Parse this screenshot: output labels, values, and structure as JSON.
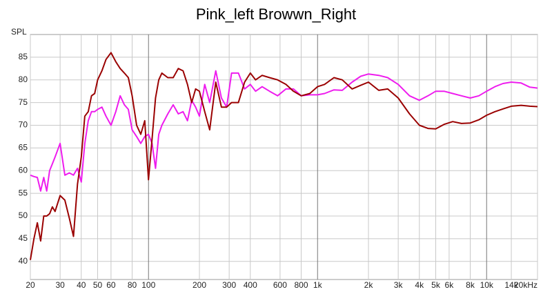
{
  "chart_data": {
    "type": "line",
    "title": "Pink_left Browwn_Right",
    "y_label": "SPL",
    "log_x": true,
    "grid": true,
    "x": [
      20,
      21,
      22,
      23,
      24,
      25,
      26,
      27,
      28,
      30,
      32,
      34,
      36,
      38,
      40,
      42,
      44,
      46,
      48,
      50,
      53,
      56,
      60,
      64,
      68,
      72,
      76,
      80,
      85,
      90,
      95,
      100,
      105,
      110,
      115,
      120,
      130,
      140,
      150,
      160,
      170,
      180,
      190,
      200,
      215,
      230,
      250,
      270,
      290,
      310,
      340,
      370,
      400,
      430,
      470,
      520,
      580,
      650,
      720,
      800,
      900,
      1000,
      1100,
      1250,
      1400,
      1600,
      1800,
      2000,
      2300,
      2600,
      3000,
      3500,
      4000,
      4500,
      5000,
      5600,
      6300,
      7100,
      8000,
      9000,
      10000,
      11200,
      12500,
      14000,
      16000,
      18000,
      20000
    ],
    "series": [
      {
        "name": "Pink",
        "color": "#ee1cee",
        "values": [
          59,
          58.7,
          58.5,
          55.5,
          58.5,
          55.5,
          60,
          61.5,
          63,
          66,
          59,
          59.5,
          59,
          60.5,
          57.5,
          66,
          71,
          73,
          73,
          73.5,
          74,
          72,
          70,
          73,
          76.5,
          74.5,
          73.5,
          69,
          67.5,
          66,
          67.5,
          68,
          66,
          60.5,
          68,
          70,
          72.5,
          74.5,
          72.5,
          73,
          71,
          75.5,
          74,
          72,
          79,
          75,
          82,
          76,
          74,
          81.5,
          81.5,
          78,
          79,
          77.5,
          78.5,
          77.5,
          76.5,
          78,
          78,
          76.5,
          76.7,
          76.7,
          77,
          77.8,
          77.7,
          79.5,
          80.8,
          81.3,
          81,
          80.5,
          79,
          76.5,
          75.5,
          76.5,
          77.5,
          77.5,
          77,
          76.5,
          76,
          76.5,
          77.5,
          78.5,
          79.2,
          79.5,
          79.3,
          78.4,
          78.2
        ]
      },
      {
        "name": "Brown",
        "color": "#9a0000",
        "values": [
          40.3,
          45,
          48.5,
          44.5,
          50,
          50,
          50.5,
          52,
          51,
          54.5,
          53.5,
          49.5,
          45.5,
          57,
          63,
          72,
          73,
          76.5,
          77,
          80,
          82,
          84.5,
          86,
          84,
          82.5,
          81.5,
          80.5,
          76.5,
          70,
          68,
          71,
          58,
          67,
          76,
          80,
          81.5,
          80.5,
          80.5,
          82.5,
          82,
          79,
          75,
          78,
          77.5,
          73,
          69,
          79.5,
          74,
          74,
          75,
          75,
          79.5,
          81.5,
          80,
          81,
          80.5,
          80,
          79,
          77.5,
          76.5,
          77,
          78.5,
          79,
          80.5,
          80,
          78,
          78.8,
          79.5,
          77.7,
          78,
          76,
          72.5,
          70,
          69.3,
          69.2,
          70.2,
          70.8,
          70.4,
          70.5,
          71.2,
          72.2,
          73,
          73.6,
          74.2,
          74.4,
          74.2,
          74.1
        ]
      }
    ],
    "xlim": [
      20,
      20000
    ],
    "ylim": [
      36,
      90
    ],
    "xticks": [
      20,
      30,
      40,
      50,
      60,
      80,
      100,
      200,
      300,
      400,
      600,
      800,
      {
        "value": 1000,
        "label": "1k"
      },
      {
        "value": 2000,
        "label": "2k"
      },
      {
        "value": 3000,
        "label": "3k"
      },
      {
        "value": 4000,
        "label": "4k"
      },
      {
        "value": 5000,
        "label": "5k"
      },
      {
        "value": 6000,
        "label": "6k"
      },
      {
        "value": 8000,
        "label": "8k"
      },
      {
        "value": 10000,
        "label": "10k"
      },
      {
        "value": 14000,
        "label": "14k"
      },
      {
        "value": 20000,
        "label": "20kHz"
      }
    ],
    "yticks": [
      40,
      45,
      50,
      55,
      60,
      65,
      70,
      75,
      80,
      85
    ]
  }
}
